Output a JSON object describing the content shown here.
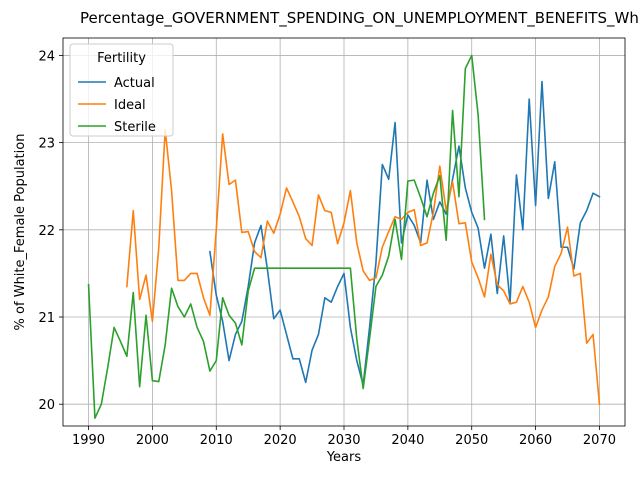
{
  "chart_data": {
    "type": "line",
    "title": "Percentage_GOVERNMENT_SPENDING_ON_UNEMPLOYMENT_BENEFITS_White_Female_Population",
    "xlabel": "Years",
    "ylabel": "% of White_Female Population",
    "xlim": [
      1986,
      2074
    ],
    "ylim": [
      19.75,
      24.2
    ],
    "xticks": [
      1990,
      2000,
      2010,
      2020,
      2030,
      2040,
      2050,
      2060,
      2070
    ],
    "yticks": [
      20,
      21,
      22,
      23,
      24
    ],
    "grid": true,
    "legend": {
      "title": "Fertility",
      "placement": "top-left"
    },
    "series": [
      {
        "name": "Actual",
        "color": "#1f77b4",
        "points": [
          [
            2009,
            21.75
          ],
          [
            2010,
            21.25
          ],
          [
            2011,
            20.95
          ],
          [
            2012,
            20.5
          ],
          [
            2013,
            20.8
          ],
          [
            2014,
            20.95
          ],
          [
            2015,
            21.35
          ],
          [
            2016,
            21.85
          ],
          [
            2017,
            22.05
          ],
          [
            2018,
            21.55
          ],
          [
            2019,
            20.98
          ],
          [
            2020,
            21.08
          ],
          [
            2021,
            20.8
          ],
          [
            2022,
            20.52
          ],
          [
            2023,
            20.52
          ],
          [
            2024,
            20.25
          ],
          [
            2025,
            20.62
          ],
          [
            2026,
            20.8
          ],
          [
            2027,
            21.22
          ],
          [
            2028,
            21.17
          ],
          [
            2029,
            21.35
          ],
          [
            2030,
            21.5
          ],
          [
            2031,
            20.88
          ],
          [
            2032,
            20.5
          ],
          [
            2033,
            20.22
          ],
          [
            2034,
            20.88
          ],
          [
            2035,
            21.62
          ],
          [
            2036,
            22.75
          ],
          [
            2037,
            22.58
          ],
          [
            2038,
            23.23
          ],
          [
            2039,
            21.85
          ],
          [
            2040,
            22.17
          ],
          [
            2041,
            22.05
          ],
          [
            2042,
            21.85
          ],
          [
            2043,
            22.57
          ],
          [
            2044,
            22.12
          ],
          [
            2045,
            22.32
          ],
          [
            2046,
            22.18
          ],
          [
            2047,
            22.58
          ],
          [
            2048,
            22.96
          ],
          [
            2049,
            22.48
          ],
          [
            2050,
            22.2
          ],
          [
            2051,
            22.02
          ],
          [
            2052,
            21.56
          ],
          [
            2053,
            21.95
          ],
          [
            2054,
            21.27
          ],
          [
            2055,
            21.93
          ],
          [
            2056,
            21.17
          ],
          [
            2057,
            22.63
          ],
          [
            2058,
            22.0
          ],
          [
            2059,
            23.5
          ],
          [
            2060,
            22.28
          ],
          [
            2061,
            23.7
          ],
          [
            2062,
            22.36
          ],
          [
            2063,
            22.78
          ],
          [
            2064,
            21.8
          ],
          [
            2065,
            21.8
          ],
          [
            2066,
            21.55
          ],
          [
            2067,
            22.08
          ],
          [
            2068,
            22.22
          ],
          [
            2069,
            22.42
          ],
          [
            2070,
            22.38
          ]
        ]
      },
      {
        "name": "Ideal",
        "color": "#ff7f0e",
        "points": [
          [
            1996,
            21.35
          ],
          [
            1997,
            22.22
          ],
          [
            1998,
            21.2
          ],
          [
            1999,
            21.48
          ],
          [
            2000,
            20.95
          ],
          [
            2001,
            21.8
          ],
          [
            2002,
            23.15
          ],
          [
            2003,
            22.45
          ],
          [
            2004,
            21.42
          ],
          [
            2005,
            21.42
          ],
          [
            2006,
            21.5
          ],
          [
            2007,
            21.5
          ],
          [
            2008,
            21.22
          ],
          [
            2009,
            21.02
          ],
          [
            2010,
            22.0
          ],
          [
            2011,
            23.1
          ],
          [
            2012,
            22.52
          ],
          [
            2013,
            22.57
          ],
          [
            2014,
            21.97
          ],
          [
            2015,
            21.98
          ],
          [
            2016,
            21.75
          ],
          [
            2017,
            21.68
          ],
          [
            2018,
            22.1
          ],
          [
            2019,
            21.96
          ],
          [
            2020,
            22.18
          ],
          [
            2021,
            22.48
          ],
          [
            2022,
            22.32
          ],
          [
            2023,
            22.15
          ],
          [
            2024,
            21.9
          ],
          [
            2025,
            21.82
          ],
          [
            2026,
            22.4
          ],
          [
            2027,
            22.22
          ],
          [
            2028,
            22.2
          ],
          [
            2029,
            21.84
          ],
          [
            2030,
            22.08
          ],
          [
            2031,
            22.45
          ],
          [
            2032,
            21.85
          ],
          [
            2033,
            21.53
          ],
          [
            2034,
            21.42
          ],
          [
            2035,
            21.45
          ],
          [
            2036,
            21.8
          ],
          [
            2037,
            21.98
          ],
          [
            2038,
            22.15
          ],
          [
            2039,
            22.12
          ],
          [
            2040,
            22.2
          ],
          [
            2041,
            22.23
          ],
          [
            2042,
            21.82
          ],
          [
            2043,
            21.85
          ],
          [
            2044,
            22.2
          ],
          [
            2045,
            22.73
          ],
          [
            2046,
            22.22
          ],
          [
            2047,
            22.55
          ],
          [
            2048,
            22.07
          ],
          [
            2049,
            22.08
          ],
          [
            2050,
            21.63
          ],
          [
            2051,
            21.45
          ],
          [
            2052,
            21.23
          ],
          [
            2053,
            21.72
          ],
          [
            2054,
            21.37
          ],
          [
            2055,
            21.3
          ],
          [
            2056,
            21.15
          ],
          [
            2057,
            21.17
          ],
          [
            2058,
            21.35
          ],
          [
            2059,
            21.17
          ],
          [
            2060,
            20.88
          ],
          [
            2061,
            21.08
          ],
          [
            2062,
            21.23
          ],
          [
            2063,
            21.58
          ],
          [
            2064,
            21.73
          ],
          [
            2065,
            22.03
          ],
          [
            2066,
            21.47
          ],
          [
            2067,
            21.5
          ],
          [
            2068,
            20.7
          ],
          [
            2069,
            20.8
          ],
          [
            2070,
            20.0
          ]
        ]
      },
      {
        "name": "Sterile",
        "color": "#2ca02c",
        "points": [
          [
            1990,
            21.37
          ],
          [
            1991,
            19.84
          ],
          [
            1992,
            20.0
          ],
          [
            1993,
            20.42
          ],
          [
            1994,
            20.88
          ],
          [
            1995,
            20.72
          ],
          [
            1996,
            20.55
          ],
          [
            1997,
            21.28
          ],
          [
            1998,
            20.2
          ],
          [
            1999,
            21.02
          ],
          [
            2000,
            20.27
          ],
          [
            2001,
            20.26
          ],
          [
            2002,
            20.68
          ],
          [
            2003,
            21.33
          ],
          [
            2004,
            21.12
          ],
          [
            2005,
            21.0
          ],
          [
            2006,
            21.15
          ],
          [
            2007,
            20.88
          ],
          [
            2008,
            20.72
          ],
          [
            2009,
            20.38
          ],
          [
            2010,
            20.5
          ],
          [
            2011,
            21.22
          ],
          [
            2012,
            21.02
          ],
          [
            2013,
            20.93
          ],
          [
            2014,
            20.68
          ],
          [
            2015,
            21.3
          ],
          [
            2016,
            21.56
          ],
          [
            2017,
            21.56
          ],
          [
            2018,
            21.56
          ],
          [
            2019,
            21.56
          ],
          [
            2020,
            21.56
          ],
          [
            2021,
            21.56
          ],
          [
            2022,
            21.56
          ],
          [
            2023,
            21.56
          ],
          [
            2024,
            21.56
          ],
          [
            2025,
            21.56
          ],
          [
            2026,
            21.56
          ],
          [
            2027,
            21.56
          ],
          [
            2028,
            21.56
          ],
          [
            2029,
            21.56
          ],
          [
            2030,
            21.56
          ],
          [
            2031,
            21.56
          ],
          [
            2032,
            20.75
          ],
          [
            2033,
            20.18
          ],
          [
            2034,
            20.75
          ],
          [
            2035,
            21.35
          ],
          [
            2036,
            21.48
          ],
          [
            2037,
            21.7
          ],
          [
            2038,
            22.12
          ],
          [
            2039,
            21.66
          ],
          [
            2040,
            22.56
          ],
          [
            2041,
            22.57
          ],
          [
            2042,
            22.37
          ],
          [
            2043,
            22.15
          ],
          [
            2044,
            22.42
          ],
          [
            2045,
            22.62
          ],
          [
            2046,
            21.88
          ],
          [
            2047,
            23.37
          ],
          [
            2048,
            22.38
          ],
          [
            2049,
            23.85
          ],
          [
            2050,
            24.0
          ],
          [
            2051,
            23.32
          ],
          [
            2052,
            22.12
          ]
        ]
      }
    ]
  }
}
